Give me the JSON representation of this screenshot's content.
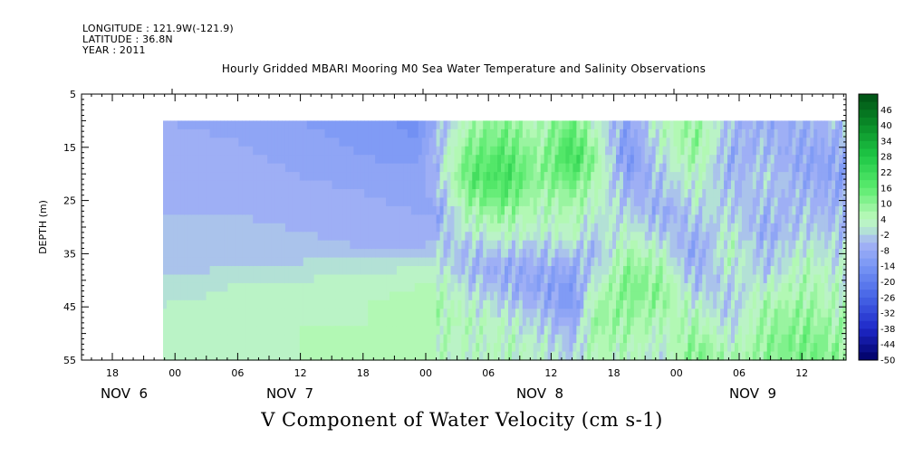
{
  "header": {
    "longitude": "LONGITUDE : 121.9W(-121.9)",
    "latitude": "LATITUDE : 36.8N",
    "year": "YEAR : 2011"
  },
  "chart_data": {
    "type": "heatmap",
    "title": "Hourly Gridded MBARI Mooring M0 Sea Water Temperature and Salinity Observations",
    "xlabel": "V Component of Water Velocity (cm s-1)",
    "ylabel": "DEPTH (m)",
    "y_axis": {
      "ticks": [
        5,
        15,
        25,
        35,
        45,
        55
      ],
      "ylim": [
        55,
        5
      ],
      "inverted": true
    },
    "x_axis": {
      "hour_ticks": [
        "18",
        "00",
        "06",
        "12",
        "18",
        "00",
        "06",
        "12",
        "18",
        "00",
        "06",
        "12"
      ],
      "date_labels": [
        "NOV  6",
        "NOV  7",
        "NOV  8",
        "NOV  9"
      ]
    },
    "colorbar": {
      "levels": [
        "46",
        "40",
        "34",
        "28",
        "22",
        "16",
        "10",
        "4",
        "-2",
        "-8",
        "-14",
        "-20",
        "-26",
        "-32",
        "-38",
        "-44",
        "-50"
      ],
      "min": -50,
      "max": 52,
      "step": 3
    },
    "data_extent": {
      "depth_range": [
        10,
        55
      ],
      "start": "Nov 6 ~23:00",
      "end": "Nov 9 ~18:00"
    },
    "field_profiles_note_free": [
      {
        "t": 0.0,
        "v": [
          -8,
          -7,
          -6,
          -6,
          -6,
          -5,
          -4,
          -4,
          -3,
          -1,
          1,
          2,
          3,
          3
        ]
      },
      {
        "t": 0.1,
        "v": [
          -9,
          -8,
          -7,
          -6,
          -6,
          -5,
          -4,
          -3,
          -2,
          1,
          2,
          3,
          3,
          3
        ]
      },
      {
        "t": 0.2,
        "v": [
          -11,
          -10,
          -9,
          -8,
          -7,
          -6,
          -5,
          -4,
          -1,
          2,
          3,
          4,
          4,
          4
        ]
      },
      {
        "t": 0.3,
        "v": [
          -13,
          -12,
          -11,
          -9,
          -8,
          -7,
          -6,
          -5,
          0,
          3,
          4,
          4,
          4,
          4
        ]
      },
      {
        "t": 0.37,
        "v": [
          -15,
          -14,
          -12,
          -10,
          -9,
          -8,
          -7,
          -6,
          1,
          4,
          5,
          5,
          5,
          5
        ]
      },
      {
        "t": 0.4,
        "v": [
          -8,
          -6,
          -4,
          -5,
          -7,
          -9,
          -6,
          -3,
          2,
          5,
          6,
          5,
          4,
          4
        ]
      },
      {
        "t": 0.45,
        "v": [
          6,
          10,
          14,
          16,
          12,
          6,
          2,
          -4,
          -6,
          -2,
          2,
          4,
          3,
          2
        ]
      },
      {
        "t": 0.5,
        "v": [
          10,
          14,
          18,
          20,
          16,
          10,
          4,
          -2,
          -8,
          -6,
          -2,
          2,
          4,
          3
        ]
      },
      {
        "t": 0.55,
        "v": [
          4,
          6,
          8,
          10,
          6,
          4,
          2,
          -4,
          -8,
          -10,
          -6,
          -2,
          1,
          2
        ]
      },
      {
        "t": 0.6,
        "v": [
          14,
          18,
          22,
          16,
          10,
          6,
          4,
          -2,
          -8,
          -12,
          -14,
          -8,
          -4,
          -2
        ]
      },
      {
        "t": 0.63,
        "v": [
          2,
          6,
          10,
          8,
          4,
          2,
          -2,
          -6,
          -4,
          2,
          6,
          8,
          6,
          4
        ]
      },
      {
        "t": 0.68,
        "v": [
          -10,
          -12,
          -14,
          -10,
          -6,
          -2,
          2,
          6,
          10,
          12,
          10,
          8,
          6,
          4
        ]
      },
      {
        "t": 0.73,
        "v": [
          4,
          2,
          0,
          -4,
          -6,
          -8,
          -4,
          2,
          6,
          10,
          8,
          4,
          2,
          0
        ]
      },
      {
        "t": 0.78,
        "v": [
          8,
          10,
          8,
          4,
          2,
          -2,
          -6,
          -10,
          -8,
          -4,
          2,
          6,
          10,
          12
        ]
      },
      {
        "t": 0.83,
        "v": [
          -4,
          -6,
          -8,
          -6,
          -4,
          -2,
          2,
          4,
          2,
          -2,
          -4,
          -2,
          2,
          6
        ]
      },
      {
        "t": 0.88,
        "v": [
          -8,
          -6,
          -4,
          -2,
          -4,
          -6,
          -8,
          -6,
          -4,
          2,
          6,
          8,
          10,
          8
        ]
      },
      {
        "t": 0.94,
        "v": [
          -6,
          -8,
          -10,
          -8,
          -6,
          -4,
          -2,
          2,
          4,
          6,
          8,
          10,
          12,
          14
        ]
      },
      {
        "t": 1.0,
        "v": [
          -4,
          -6,
          -8,
          -10,
          -8,
          -6,
          -4,
          -2,
          0,
          2,
          4,
          6,
          8,
          10
        ]
      }
    ]
  }
}
